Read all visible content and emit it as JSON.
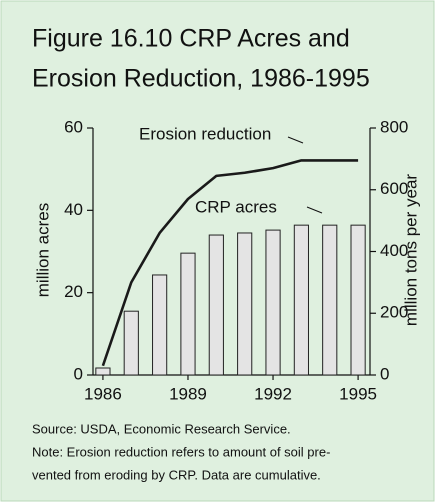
{
  "chart_data": {
    "type": "bar-line",
    "title": [
      "Figure 16.10  CRP Acres and",
      "Erosion Reduction, 1986-1995"
    ],
    "ylabel": "million acres",
    "y2label": "million tons per year",
    "x": [
      1986,
      1987,
      1988,
      1989,
      1990,
      1991,
      1992,
      1993,
      1994,
      1995
    ],
    "xlim": [
      1985.65,
      1995.42
    ],
    "xticks": [
      1986,
      1989,
      1992,
      1995
    ],
    "ylim": [
      0,
      60
    ],
    "yticks": [
      0,
      20,
      40,
      60
    ],
    "y2lim": [
      0,
      800
    ],
    "y2ticks": [
      0,
      200,
      400,
      600,
      800
    ],
    "series": [
      {
        "name": "CRP acres",
        "type": "bar",
        "axis": "y",
        "color": "#e4e4e4",
        "values": [
          1.7,
          15.5,
          24.3,
          29.6,
          34,
          34.5,
          35.2,
          36.4,
          36.4,
          36.4
        ]
      },
      {
        "name": "Erosion reduction",
        "type": "line",
        "axis": "y2",
        "color": "#1a1a1a",
        "values": [
          30,
          300,
          460,
          570,
          645,
          655,
          670,
          695,
          695,
          695
        ]
      }
    ],
    "notes": [
      "Source: USDA, Economic Research Service.",
      "Note: Erosion reduction refers to amount of soil pre-",
      "vented from eroding by CRP.  Data are cumulative."
    ]
  }
}
